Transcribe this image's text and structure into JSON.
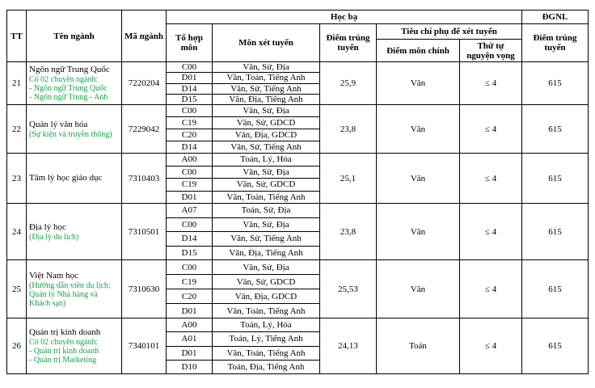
{
  "header": {
    "tt": "TT",
    "major": "Tên ngành",
    "code": "Mã ngành",
    "hocba": "Học bạ",
    "dgnl": "ĐGNL",
    "combo": "Tổ hợp môn",
    "subjects": "Môn xét tuyển",
    "score": "Điểm trúng tuyển",
    "criteria": "Tiêu chí phụ để xét tuyển",
    "main_subject": "Điểm môn chính",
    "order": "Thứ tự nguyện vọng",
    "dgnl_score": "Điểm trúng tuyển"
  },
  "rows": [
    {
      "tt": "21",
      "name": "Ngôn ngữ Trung Quốc",
      "notes": [
        "Có 02 chuyên ngành:",
        "- Ngôn ngữ Trung Quốc",
        "- Ngôn ngữ Trung - Anh"
      ],
      "code": "7220204",
      "combos": [
        {
          "code": "C00",
          "subjects": "Văn, Sử, Địa"
        },
        {
          "code": "D01",
          "subjects": "Văn, Toán, Tiếng Anh"
        },
        {
          "code": "D14",
          "subjects": "Văn, Sử, Tiếng Anh"
        },
        {
          "code": "D15",
          "subjects": "Văn, Địa, Tiếng Anh"
        }
      ],
      "score": "25,9",
      "main": "Văn",
      "order": "≤ 4",
      "dgnl": "615"
    },
    {
      "tt": "22",
      "name": "Quản lý văn hóa",
      "notes": [
        "(Sự kiện và truyền thông)"
      ],
      "code": "7229042",
      "combos": [
        {
          "code": "C00",
          "subjects": "Văn, Sử, Địa"
        },
        {
          "code": "C19",
          "subjects": "Văn, Sử, GDCD"
        },
        {
          "code": "C20",
          "subjects": "Văn, Địa, GDCD"
        },
        {
          "code": "D14",
          "subjects": "Văn, Sử, Tiếng Anh"
        }
      ],
      "score": "23,8",
      "main": "Văn",
      "order": "≤ 4",
      "dgnl": "615"
    },
    {
      "tt": "23",
      "name": "Tâm lý học giáo dục",
      "notes": [],
      "code": "7310403",
      "combos": [
        {
          "code": "A00",
          "subjects": "Toán, Lý, Hóa"
        },
        {
          "code": "C00",
          "subjects": "Văn, Sử, Địa"
        },
        {
          "code": "C19",
          "subjects": "Văn, Sử, GDCD"
        },
        {
          "code": "D01",
          "subjects": "Văn, Toán, Tiếng Anh"
        }
      ],
      "score": "25,1",
      "main": "Văn",
      "order": "≤ 4",
      "dgnl": "615"
    },
    {
      "tt": "24",
      "name": "Địa lý học",
      "notes": [
        "(Địa lý du lịch)"
      ],
      "code": "7310501",
      "combos": [
        {
          "code": "A07",
          "subjects": "Toán, Sử, Địa"
        },
        {
          "code": "C00",
          "subjects": "Văn, Sử, Địa"
        },
        {
          "code": "D14",
          "subjects": "Văn, Sử, Tiếng Anh"
        },
        {
          "code": "D15",
          "subjects": "Văn, Địa, Tiếng Anh"
        }
      ],
      "score": "23,8",
      "main": "Văn",
      "order": "≤ 4",
      "dgnl": "615"
    },
    {
      "tt": "25",
      "name": "Việt Nam học",
      "notes": [
        "(Hướng dẫn viên du lịch; Quản lý Nhà hàng và Khách sạn)"
      ],
      "code": "7310630",
      "combos": [
        {
          "code": "C00",
          "subjects": "Văn, Sử, Địa"
        },
        {
          "code": "C19",
          "subjects": "Văn, Sử, GDCD"
        },
        {
          "code": "C20",
          "subjects": "Văn, Địa, GDCD"
        },
        {
          "code": "D01",
          "subjects": "Văn, Toán, Tiếng Anh"
        }
      ],
      "score": "25,53",
      "main": "Văn",
      "order": "≤ 4",
      "dgnl": "615"
    },
    {
      "tt": "26",
      "name": "Quản trị kinh doanh",
      "notes": [
        "Có 02 chuyên ngành:",
        "- Quản trị kinh doanh",
        "- Quản trị Marketing"
      ],
      "code": "7340101",
      "combos": [
        {
          "code": "A00",
          "subjects": "Toán, Lý, Hóa"
        },
        {
          "code": "A01",
          "subjects": "Toán, Lý, Tiếng Anh"
        },
        {
          "code": "D01",
          "subjects": "Văn, Toán, Tiếng Anh"
        },
        {
          "code": "D10",
          "subjects": "Toán, Địa, Tiếng Anh"
        }
      ],
      "score": "24,13",
      "main": "Toán",
      "order": "≤ 4",
      "dgnl": "615"
    }
  ]
}
